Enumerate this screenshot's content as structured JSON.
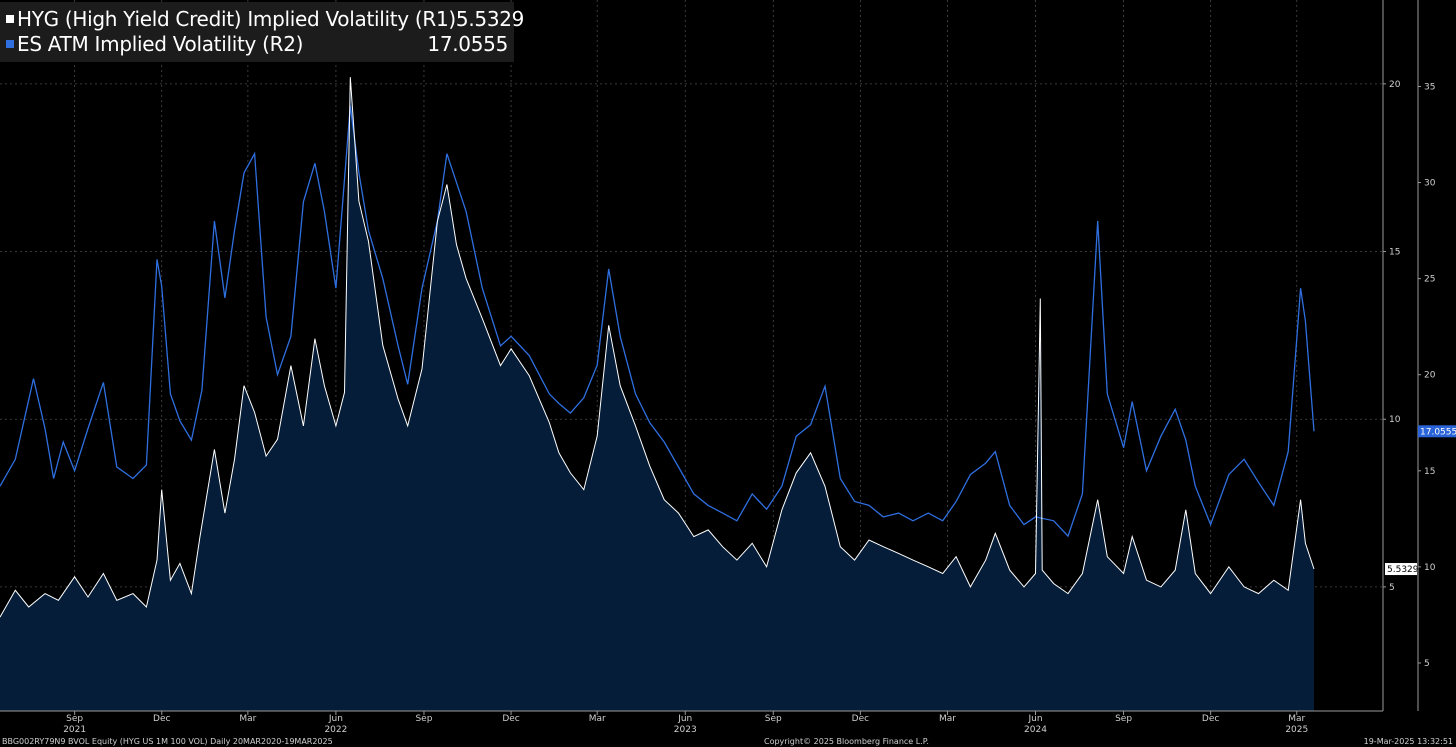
{
  "legend": {
    "series1_name": "HYG (High Yield Credit) Implied Volatility (R1)",
    "series1_value": "5.5329",
    "series2_name": "ES ATM Implied Volatility (R2)",
    "series2_value": "17.0555"
  },
  "footer": {
    "left": "BBG002RY79N9 BVOL Equity (HYG US 1M 100 VOL)  Daily 20MAR2020-19MAR2025",
    "center": "Copyright© 2025 Bloomberg Finance L.P.",
    "right": "19-Mar-2025 13:32:51"
  },
  "colors": {
    "background": "#000000",
    "hyg_line": "#ffffff",
    "hyg_fill": "#051d38",
    "es_line": "#2f6fe0",
    "grid": "#4a4a4a",
    "tag_es": "#2a64d8",
    "tag_hyg": "#ffffff"
  },
  "chart_data": {
    "type": "line",
    "grid": true,
    "x_start": "2021-06-15",
    "x_end": "2025-03-19",
    "x_ticks": [
      {
        "date": "2021-09-01",
        "label": "Sep"
      },
      {
        "date": "2021-12-01",
        "label": "Dec"
      },
      {
        "date": "2022-03-01",
        "label": "Mar"
      },
      {
        "date": "2022-06-01",
        "label": "Jun"
      },
      {
        "date": "2022-09-01",
        "label": "Sep"
      },
      {
        "date": "2022-12-01",
        "label": "Dec"
      },
      {
        "date": "2023-03-01",
        "label": "Mar"
      },
      {
        "date": "2023-06-01",
        "label": "Jun"
      },
      {
        "date": "2023-09-01",
        "label": "Sep"
      },
      {
        "date": "2023-12-01",
        "label": "Dec"
      },
      {
        "date": "2024-03-01",
        "label": "Mar"
      },
      {
        "date": "2024-06-01",
        "label": "Jun"
      },
      {
        "date": "2024-09-01",
        "label": "Sep"
      },
      {
        "date": "2024-12-01",
        "label": "Dec"
      },
      {
        "date": "2025-03-01",
        "label": "Mar"
      }
    ],
    "year_labels": [
      {
        "date": "2021-09-01",
        "label": "2021"
      },
      {
        "date": "2022-06-01",
        "label": "2022"
      },
      {
        "date": "2023-06-01",
        "label": "2023"
      },
      {
        "date": "2024-06-01",
        "label": "2024"
      },
      {
        "date": "2025-03-01",
        "label": "2025"
      }
    ],
    "axis_r1": {
      "min": 1.3,
      "max": 22.5,
      "ticks": [
        5,
        10,
        15,
        20
      ]
    },
    "axis_r2": {
      "min": 2.5,
      "max": 39.5,
      "ticks": [
        5,
        10,
        15,
        20,
        25,
        30,
        35
      ]
    },
    "series": [
      {
        "name": "HYG (High Yield Credit) Implied Volatility (R1)",
        "axis": "r1",
        "last_value": 5.5329,
        "last_label": "5.5329",
        "points": [
          [
            "2021-06-15",
            4.1
          ],
          [
            "2021-07-01",
            4.9
          ],
          [
            "2021-07-15",
            4.4
          ],
          [
            "2021-08-01",
            4.8
          ],
          [
            "2021-08-15",
            4.6
          ],
          [
            "2021-09-01",
            5.3
          ],
          [
            "2021-09-15",
            4.7
          ],
          [
            "2021-10-01",
            5.4
          ],
          [
            "2021-10-15",
            4.6
          ],
          [
            "2021-11-01",
            4.8
          ],
          [
            "2021-11-15",
            4.4
          ],
          [
            "2021-11-26",
            5.8
          ],
          [
            "2021-12-01",
            7.9
          ],
          [
            "2021-12-10",
            5.2
          ],
          [
            "2021-12-20",
            5.7
          ],
          [
            "2022-01-01",
            4.8
          ],
          [
            "2022-01-10",
            6.5
          ],
          [
            "2022-01-25",
            9.1
          ],
          [
            "2022-02-05",
            7.2
          ],
          [
            "2022-02-15",
            8.8
          ],
          [
            "2022-02-25",
            11.0
          ],
          [
            "2022-03-08",
            10.2
          ],
          [
            "2022-03-20",
            8.9
          ],
          [
            "2022-04-01",
            9.4
          ],
          [
            "2022-04-15",
            11.6
          ],
          [
            "2022-04-28",
            9.8
          ],
          [
            "2022-05-10",
            12.4
          ],
          [
            "2022-05-20",
            11.0
          ],
          [
            "2022-06-01",
            9.8
          ],
          [
            "2022-06-10",
            10.8
          ],
          [
            "2022-06-16",
            20.2
          ],
          [
            "2022-06-25",
            16.5
          ],
          [
            "2022-07-05",
            15.3
          ],
          [
            "2022-07-20",
            12.2
          ],
          [
            "2022-08-05",
            10.6
          ],
          [
            "2022-08-15",
            9.8
          ],
          [
            "2022-08-30",
            11.5
          ],
          [
            "2022-09-15",
            15.9
          ],
          [
            "2022-09-25",
            17.0
          ],
          [
            "2022-10-05",
            15.2
          ],
          [
            "2022-10-15",
            14.2
          ],
          [
            "2022-11-01",
            13.0
          ],
          [
            "2022-11-20",
            11.6
          ],
          [
            "2022-12-01",
            12.1
          ],
          [
            "2022-12-20",
            11.3
          ],
          [
            "2023-01-10",
            9.9
          ],
          [
            "2023-01-20",
            9.0
          ],
          [
            "2023-02-01",
            8.4
          ],
          [
            "2023-02-15",
            7.9
          ],
          [
            "2023-03-01",
            9.5
          ],
          [
            "2023-03-13",
            12.8
          ],
          [
            "2023-03-25",
            11.0
          ],
          [
            "2023-04-10",
            9.8
          ],
          [
            "2023-04-25",
            8.6
          ],
          [
            "2023-05-10",
            7.6
          ],
          [
            "2023-05-25",
            7.2
          ],
          [
            "2023-06-10",
            6.5
          ],
          [
            "2023-06-25",
            6.7
          ],
          [
            "2023-07-10",
            6.2
          ],
          [
            "2023-07-25",
            5.8
          ],
          [
            "2023-08-10",
            6.3
          ],
          [
            "2023-08-25",
            5.6
          ],
          [
            "2023-09-10",
            7.3
          ],
          [
            "2023-09-25",
            8.4
          ],
          [
            "2023-10-10",
            9.0
          ],
          [
            "2023-10-25",
            8.0
          ],
          [
            "2023-11-10",
            6.2
          ],
          [
            "2023-11-25",
            5.8
          ],
          [
            "2023-12-10",
            6.4
          ],
          [
            "2023-12-25",
            6.2
          ],
          [
            "2024-01-10",
            6.0
          ],
          [
            "2024-01-25",
            5.8
          ],
          [
            "2024-02-10",
            5.6
          ],
          [
            "2024-02-25",
            5.4
          ],
          [
            "2024-03-10",
            5.9
          ],
          [
            "2024-03-25",
            5.0
          ],
          [
            "2024-04-10",
            5.8
          ],
          [
            "2024-04-20",
            6.6
          ],
          [
            "2024-05-05",
            5.5
          ],
          [
            "2024-05-20",
            5.0
          ],
          [
            "2024-06-01",
            5.4
          ],
          [
            "2024-06-06",
            13.6
          ],
          [
            "2024-06-08",
            5.5
          ],
          [
            "2024-06-20",
            5.1
          ],
          [
            "2024-07-05",
            4.8
          ],
          [
            "2024-07-20",
            5.4
          ],
          [
            "2024-08-05",
            7.6
          ],
          [
            "2024-08-15",
            5.9
          ],
          [
            "2024-09-01",
            5.4
          ],
          [
            "2024-09-10",
            6.5
          ],
          [
            "2024-09-25",
            5.2
          ],
          [
            "2024-10-10",
            5.0
          ],
          [
            "2024-10-25",
            5.5
          ],
          [
            "2024-11-05",
            7.3
          ],
          [
            "2024-11-15",
            5.4
          ],
          [
            "2024-12-01",
            4.8
          ],
          [
            "2024-12-20",
            5.6
          ],
          [
            "2025-01-05",
            5.0
          ],
          [
            "2025-01-20",
            4.8
          ],
          [
            "2025-02-05",
            5.2
          ],
          [
            "2025-02-20",
            4.9
          ],
          [
            "2025-03-05",
            7.6
          ],
          [
            "2025-03-10",
            6.3
          ],
          [
            "2025-03-19",
            5.5329
          ]
        ]
      },
      {
        "name": "ES ATM Implied Volatility (R2)",
        "axis": "r2",
        "last_value": 17.0555,
        "last_label": "17.0555",
        "points": [
          [
            "2021-06-15",
            14.2
          ],
          [
            "2021-07-01",
            15.6
          ],
          [
            "2021-07-20",
            19.8
          ],
          [
            "2021-08-01",
            17.2
          ],
          [
            "2021-08-10",
            14.6
          ],
          [
            "2021-08-20",
            16.5
          ],
          [
            "2021-09-01",
            15.0
          ],
          [
            "2021-09-15",
            17.2
          ],
          [
            "2021-10-01",
            19.6
          ],
          [
            "2021-10-15",
            15.2
          ],
          [
            "2021-11-01",
            14.6
          ],
          [
            "2021-11-15",
            15.3
          ],
          [
            "2021-11-26",
            26.0
          ],
          [
            "2021-12-01",
            24.6
          ],
          [
            "2021-12-10",
            19.0
          ],
          [
            "2021-12-20",
            17.6
          ],
          [
            "2022-01-01",
            16.6
          ],
          [
            "2022-01-12",
            19.2
          ],
          [
            "2022-01-25",
            28.0
          ],
          [
            "2022-02-05",
            24.0
          ],
          [
            "2022-02-15",
            27.5
          ],
          [
            "2022-02-25",
            30.5
          ],
          [
            "2022-03-08",
            31.5
          ],
          [
            "2022-03-20",
            23.0
          ],
          [
            "2022-04-01",
            20.0
          ],
          [
            "2022-04-15",
            22.0
          ],
          [
            "2022-04-28",
            29.0
          ],
          [
            "2022-05-10",
            31.0
          ],
          [
            "2022-05-20",
            28.5
          ],
          [
            "2022-06-01",
            24.5
          ],
          [
            "2022-06-16",
            34.0
          ],
          [
            "2022-06-25",
            30.5
          ],
          [
            "2022-07-05",
            27.5
          ],
          [
            "2022-07-20",
            25.0
          ],
          [
            "2022-08-05",
            21.5
          ],
          [
            "2022-08-15",
            19.5
          ],
          [
            "2022-08-30",
            24.5
          ],
          [
            "2022-09-15",
            28.0
          ],
          [
            "2022-09-25",
            31.5
          ],
          [
            "2022-10-05",
            30.0
          ],
          [
            "2022-10-15",
            28.5
          ],
          [
            "2022-11-01",
            24.5
          ],
          [
            "2022-11-20",
            21.5
          ],
          [
            "2022-12-01",
            22.0
          ],
          [
            "2022-12-20",
            21.0
          ],
          [
            "2023-01-10",
            19.0
          ],
          [
            "2023-01-20",
            18.5
          ],
          [
            "2023-02-01",
            18.0
          ],
          [
            "2023-02-15",
            18.8
          ],
          [
            "2023-03-01",
            20.5
          ],
          [
            "2023-03-13",
            25.5
          ],
          [
            "2023-03-25",
            22.0
          ],
          [
            "2023-04-10",
            19.0
          ],
          [
            "2023-04-25",
            17.5
          ],
          [
            "2023-05-10",
            16.5
          ],
          [
            "2023-05-25",
            15.2
          ],
          [
            "2023-06-10",
            13.8
          ],
          [
            "2023-06-25",
            13.2
          ],
          [
            "2023-07-10",
            12.8
          ],
          [
            "2023-07-25",
            12.4
          ],
          [
            "2023-08-10",
            13.8
          ],
          [
            "2023-08-25",
            13.0
          ],
          [
            "2023-09-10",
            14.2
          ],
          [
            "2023-09-25",
            16.8
          ],
          [
            "2023-10-10",
            17.4
          ],
          [
            "2023-10-25",
            19.4
          ],
          [
            "2023-11-10",
            14.6
          ],
          [
            "2023-11-25",
            13.4
          ],
          [
            "2023-12-10",
            13.2
          ],
          [
            "2023-12-25",
            12.6
          ],
          [
            "2024-01-10",
            12.8
          ],
          [
            "2024-01-25",
            12.4
          ],
          [
            "2024-02-10",
            12.8
          ],
          [
            "2024-02-25",
            12.4
          ],
          [
            "2024-03-10",
            13.4
          ],
          [
            "2024-03-25",
            14.8
          ],
          [
            "2024-04-10",
            15.4
          ],
          [
            "2024-04-20",
            16.0
          ],
          [
            "2024-05-05",
            13.2
          ],
          [
            "2024-05-20",
            12.2
          ],
          [
            "2024-06-01",
            12.6
          ],
          [
            "2024-06-20",
            12.4
          ],
          [
            "2024-07-05",
            11.6
          ],
          [
            "2024-07-20",
            13.8
          ],
          [
            "2024-08-05",
            28.0
          ],
          [
            "2024-08-15",
            19.0
          ],
          [
            "2024-09-01",
            16.2
          ],
          [
            "2024-09-10",
            18.6
          ],
          [
            "2024-09-25",
            15.0
          ],
          [
            "2024-10-10",
            16.8
          ],
          [
            "2024-10-25",
            18.2
          ],
          [
            "2024-11-05",
            16.6
          ],
          [
            "2024-11-15",
            14.2
          ],
          [
            "2024-12-01",
            12.2
          ],
          [
            "2024-12-20",
            14.8
          ],
          [
            "2025-01-05",
            15.6
          ],
          [
            "2025-01-20",
            14.4
          ],
          [
            "2025-02-05",
            13.2
          ],
          [
            "2025-02-20",
            16.0
          ],
          [
            "2025-03-05",
            24.5
          ],
          [
            "2025-03-10",
            22.8
          ],
          [
            "2025-03-19",
            17.0555
          ]
        ]
      }
    ]
  }
}
